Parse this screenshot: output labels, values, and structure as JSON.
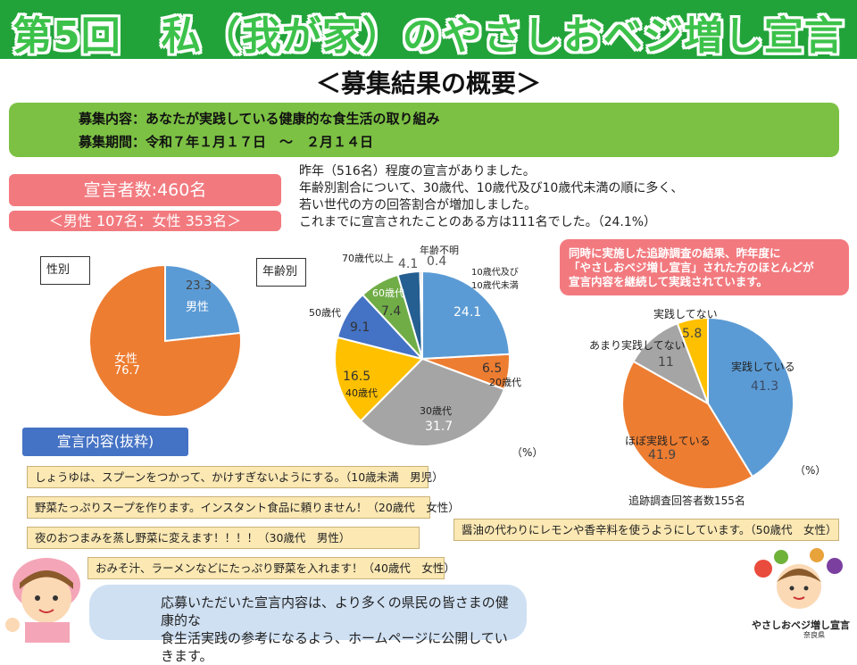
{
  "header": {
    "title": "第5回　私（我が家）のやさしおベジ増し宣言"
  },
  "subtitle": "＜募集結果の概要＞",
  "recruitment": {
    "content": "募集内容：あなたが実践している健康的な食生活の取り組み",
    "period": "募集期間：令和７年１月１７日　～　２月１４日"
  },
  "stats": {
    "count": "宣言者数:460名",
    "gender_split": "＜男性 107名：女性 353名＞"
  },
  "summary": [
    "昨年（516名）程度の宣言がありました。",
    "年齢別割合について、30歳代、10歳代及び10歳代未満の順に多く、",
    "若い世代の方の回答割合が増加しました。",
    "これまでに宣言されたことのある方は111名でした。（24.1%）"
  ],
  "notice": [
    "同時に実施した追跡調査の結果、昨年度に",
    "「やさしおベジ増し宣言」された方のほとんどが",
    "宣言内容を継続して実践されています。"
  ],
  "chart_data": [
    {
      "type": "pie",
      "title": "性別",
      "unit": "",
      "categories": [
        "男性",
        "女性"
      ],
      "values": [
        23.3,
        76.7
      ],
      "colors": [
        "#5b9bd5",
        "#ed7d31"
      ]
    },
    {
      "type": "pie",
      "title": "年齢別",
      "unit": "（%）",
      "categories": [
        "10歳代及び10歳代未満",
        "20歳代",
        "30歳代",
        "40歳代",
        "50歳代",
        "60歳代",
        "70歳代以上",
        "年齢不明"
      ],
      "values": [
        24.1,
        6.5,
        31.7,
        16.5,
        9.1,
        7.4,
        4.1,
        0.4
      ],
      "colors": [
        "#5b9bd5",
        "#ed7d31",
        "#a5a5a5",
        "#ffc000",
        "#4472c4",
        "#70ad47",
        "#255e91",
        "#9e9e9e"
      ]
    },
    {
      "type": "pie",
      "title": "",
      "unit": "（%）",
      "footer": "追跡調査回答者数155名",
      "categories": [
        "実践している",
        "ほぼ実践している",
        "あまり実践してない",
        "実践してない"
      ],
      "values": [
        41.3,
        41.9,
        11.0,
        5.8
      ],
      "colors": [
        "#5b9bd5",
        "#ed7d31",
        "#a5a5a5",
        "#ffc000"
      ]
    }
  ],
  "excerpt": {
    "label": "宣言内容(抜粋)",
    "items": [
      "しょうゆは、スプーンをつかって、かけすぎないようにする。（10歳未満　男児）",
      "野菜たっぷりスープを作ります。インスタント食品に頼りません！（20歳代　女性）",
      "夜のおつまみを蒸し野菜に変えます！！！！（30歳代　男性）",
      "おみそ汁、ラーメンなどにたっぷり野菜を入れます！（40歳代　女性）",
      "醤油の代わりにレモンや香辛料を使うようにしています。（50歳代　女性）"
    ]
  },
  "bubble": [
    "応募いただいた宣言内容は、より多くの県民の皆さまの健康的な",
    "食生活実践の参考になるよう、ホームページに公開していきます。"
  ],
  "logo": {
    "text": "やさしおベジ増し宣言",
    "org": "奈良県"
  }
}
